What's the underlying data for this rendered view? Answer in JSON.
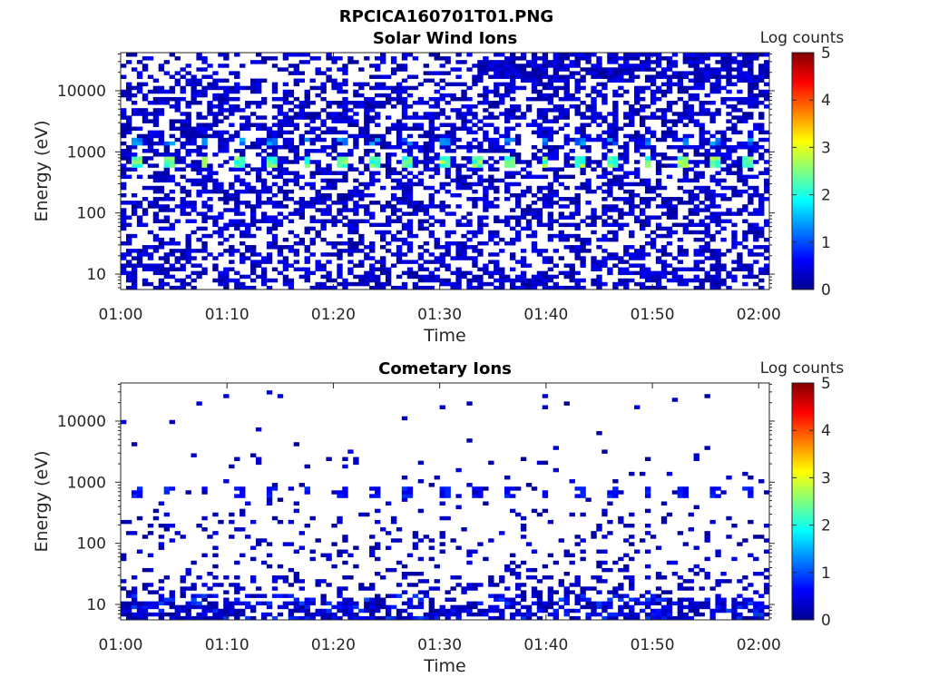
{
  "figure": {
    "title": "RPCICA160701T01.PNG"
  },
  "chart_data": [
    {
      "type": "heatmap",
      "title": "Solar Wind Ions",
      "xlabel": "Time",
      "ylabel": "Energy (eV)",
      "x_range": [
        "01:00",
        "02:01"
      ],
      "x_ticks": [
        "01:00",
        "01:10",
        "01:20",
        "01:30",
        "01:40",
        "01:50",
        "02:00"
      ],
      "y_scale": "log",
      "ylim": [
        5.6,
        42000
      ],
      "y_ticks": [
        10,
        100,
        1000,
        10000
      ],
      "y_tick_labels": [
        "10",
        "100",
        "1000",
        "10000"
      ],
      "colorbar": {
        "label": "Log counts",
        "min": 0,
        "max": 5,
        "ticks": [
          "0",
          "1",
          "2",
          "3",
          "4",
          "5"
        ],
        "colormap": "jet"
      },
      "peak_energy_eV": 700,
      "peak_level": 2.6,
      "secondary_energy_eV": 1400,
      "secondary_level": 1.5,
      "peak_period_minutes": 3.2
    },
    {
      "type": "heatmap",
      "title": "Cometary Ions",
      "xlabel": "Time",
      "ylabel": "Energy (eV)",
      "x_range": [
        "01:00",
        "02:01"
      ],
      "x_ticks": [
        "01:00",
        "01:10",
        "01:20",
        "01:30",
        "01:40",
        "01:50",
        "02:00"
      ],
      "y_scale": "log",
      "ylim": [
        5.6,
        42000
      ],
      "y_ticks": [
        10,
        100,
        1000,
        10000
      ],
      "y_tick_labels": [
        "10",
        "100",
        "1000",
        "10000"
      ],
      "colorbar": {
        "label": "Log counts",
        "min": 0,
        "max": 5,
        "ticks": [
          "0",
          "1",
          "2",
          "3",
          "4",
          "5"
        ],
        "colormap": "jet"
      },
      "peak_energy_eV": 700,
      "peak_level": 0.8,
      "low_energy_eV": 10,
      "low_energy_level": 1.0,
      "peak_period_minutes": 3.2
    }
  ]
}
